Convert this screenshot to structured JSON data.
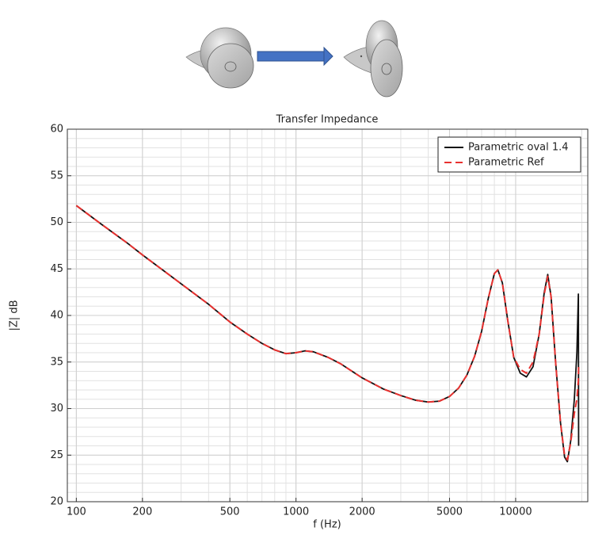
{
  "chart_data": {
    "type": "line",
    "title": "Transfer Impedance",
    "xlabel": "f (Hz)",
    "ylabel": "|Z| dB",
    "x": [
      100,
      130,
      170,
      200,
      250,
      300,
      400,
      500,
      600,
      700,
      800,
      900,
      1000,
      1100,
      1200,
      1400,
      1600,
      2000,
      2500,
      3000,
      3500,
      4000,
      4500,
      5000,
      5500,
      6000,
      6500,
      7000,
      7500,
      8000,
      8300,
      8700,
      9200,
      9800,
      10500,
      11200,
      12000,
      12800,
      13500,
      14000,
      14500,
      15200,
      16000,
      16700,
      17200,
      17800,
      18500,
      19000,
      19300,
      19350
    ],
    "series": [
      {
        "name": "Parametric oval 1.4",
        "color": "#111111",
        "dash": false,
        "values": [
          51.8,
          49.8,
          47.8,
          46.5,
          44.8,
          43.4,
          41.2,
          39.3,
          38.0,
          37.0,
          36.3,
          35.9,
          36.0,
          36.2,
          36.1,
          35.5,
          34.8,
          33.3,
          32.1,
          31.4,
          30.9,
          30.7,
          30.8,
          31.3,
          32.2,
          33.6,
          35.6,
          38.3,
          41.8,
          44.5,
          44.9,
          43.5,
          39.5,
          35.5,
          33.8,
          33.4,
          34.5,
          38.0,
          42.5,
          44.4,
          42.0,
          35.0,
          28.5,
          24.8,
          24.3,
          26.5,
          31.0,
          36.0,
          42.3,
          26.0
        ]
      },
      {
        "name": "Parametric Ref",
        "color": "#e8312f",
        "dash": true,
        "values": [
          51.8,
          49.8,
          47.8,
          46.5,
          44.8,
          43.4,
          41.2,
          39.3,
          38.0,
          37.0,
          36.3,
          35.9,
          36.0,
          36.2,
          36.1,
          35.5,
          34.8,
          33.3,
          32.1,
          31.4,
          30.9,
          30.7,
          30.8,
          31.3,
          32.2,
          33.6,
          35.6,
          38.3,
          41.8,
          44.5,
          44.9,
          43.5,
          39.5,
          35.5,
          34.2,
          33.8,
          35.0,
          38.0,
          42.3,
          44.2,
          42.0,
          35.0,
          28.5,
          25.0,
          24.5,
          26.3,
          29.5,
          31.0,
          33.0,
          34.5
        ]
      }
    ],
    "xlim": [
      91,
      21300
    ],
    "xticks": [
      100,
      200,
      500,
      1000,
      2000,
      5000,
      10000
    ],
    "log_x": true,
    "ylim": [
      20,
      60
    ],
    "yticks": [
      20,
      25,
      30,
      35,
      40,
      45,
      50,
      55,
      60
    ],
    "grid": true,
    "legend": "upper right"
  }
}
